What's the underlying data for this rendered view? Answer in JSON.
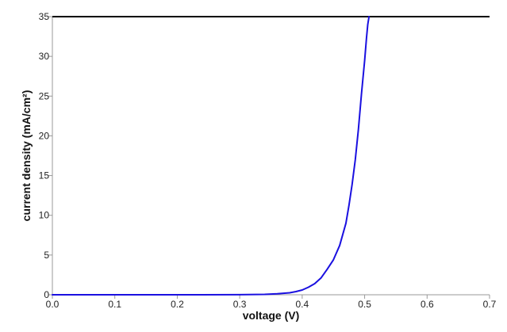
{
  "chart_data": {
    "type": "line",
    "title": "",
    "xlabel": "voltage (V)",
    "ylabel": "current density (mA/cm²)",
    "xlim": [
      0.0,
      0.7
    ],
    "ylim": [
      0,
      35
    ],
    "x_ticks": [
      "0.0",
      "0.1",
      "0.2",
      "0.3",
      "0.4",
      "0.5",
      "0.6",
      "0.7"
    ],
    "y_ticks": [
      "0",
      "5",
      "10",
      "15",
      "20",
      "25",
      "30",
      "35"
    ],
    "grid": false,
    "legend": "none",
    "series": [
      {
        "color": "#1a10e0",
        "x": [
          0.0,
          0.1,
          0.2,
          0.3,
          0.34,
          0.36,
          0.38,
          0.39,
          0.4,
          0.41,
          0.42,
          0.43,
          0.44,
          0.45,
          0.46,
          0.47,
          0.475,
          0.48,
          0.485,
          0.49,
          0.495,
          0.5,
          0.503,
          0.505,
          0.507
        ],
        "y": [
          0.0,
          0.0,
          0.0,
          0.01,
          0.05,
          0.12,
          0.25,
          0.4,
          0.6,
          0.95,
          1.4,
          2.1,
          3.2,
          4.4,
          6.2,
          9.0,
          11.3,
          13.9,
          17.0,
          20.8,
          25.3,
          29.5,
          32.3,
          34.0,
          35.0
        ]
      }
    ]
  }
}
